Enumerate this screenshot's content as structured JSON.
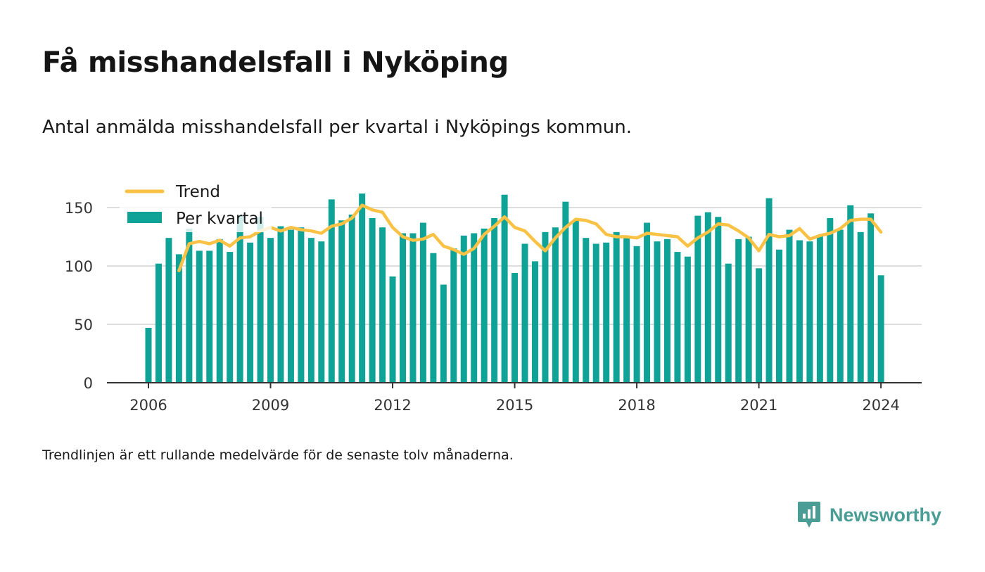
{
  "title": "Få misshandelsfall i Nyköping",
  "subtitle": "Antal anmälda misshandelsfall per kvartal i Nyköpings kommun.",
  "note": "Trendlinjen är ett rullande medelvärde för de senaste tolv månaderna.",
  "brand": {
    "name": "Newsworthy",
    "icon": "newsworthy-logo-icon"
  },
  "colors": {
    "bar": "#0fa397",
    "trend": "#f9c244",
    "grid": "#dddddd",
    "axis": "#333333",
    "brand": "#4a9d94"
  },
  "chart_data": {
    "type": "bar",
    "x_unit": "quarter",
    "start": "2006 Q1",
    "categories": [
      "2006 Q1",
      "2006 Q2",
      "2006 Q3",
      "2006 Q4",
      "2007 Q1",
      "2007 Q2",
      "2007 Q3",
      "2007 Q4",
      "2008 Q1",
      "2008 Q2",
      "2008 Q3",
      "2008 Q4",
      "2009 Q1",
      "2009 Q2",
      "2009 Q3",
      "2009 Q4",
      "2010 Q1",
      "2010 Q2",
      "2010 Q3",
      "2010 Q4",
      "2011 Q1",
      "2011 Q2",
      "2011 Q3",
      "2011 Q4",
      "2012 Q1",
      "2012 Q2",
      "2012 Q3",
      "2012 Q4",
      "2013 Q1",
      "2013 Q2",
      "2013 Q3",
      "2013 Q4",
      "2014 Q1",
      "2014 Q2",
      "2014 Q3",
      "2014 Q4",
      "2015 Q1",
      "2015 Q2",
      "2015 Q3",
      "2015 Q4",
      "2016 Q1",
      "2016 Q2",
      "2016 Q3",
      "2016 Q4",
      "2017 Q1",
      "2017 Q2",
      "2017 Q3",
      "2017 Q4",
      "2018 Q1",
      "2018 Q2",
      "2018 Q3",
      "2018 Q4",
      "2019 Q1",
      "2019 Q2",
      "2019 Q3",
      "2019 Q4",
      "2020 Q1",
      "2020 Q2",
      "2020 Q3",
      "2020 Q4",
      "2021 Q1",
      "2021 Q2",
      "2021 Q3",
      "2021 Q4",
      "2022 Q1",
      "2022 Q2",
      "2022 Q3",
      "2022 Q4",
      "2023 Q1",
      "2023 Q2",
      "2023 Q3",
      "2023 Q4",
      "2024 Q1"
    ],
    "series": [
      {
        "name": "Per kvartal",
        "kind": "bar",
        "values": [
          47,
          102,
          124,
          110,
          132,
          113,
          113,
          123,
          112,
          143,
          120,
          142,
          124,
          134,
          131,
          133,
          124,
          121,
          157,
          139,
          144,
          162,
          141,
          133,
          91,
          128,
          128,
          137,
          111,
          84,
          115,
          126,
          128,
          132,
          141,
          161,
          94,
          119,
          104,
          129,
          133,
          155,
          139,
          124,
          119,
          120,
          129,
          125,
          117,
          137,
          121,
          123,
          112,
          108,
          143,
          146,
          142,
          102,
          123,
          125,
          98,
          158,
          114,
          131,
          122,
          121,
          126,
          141,
          131,
          152,
          129,
          145,
          92
        ]
      },
      {
        "name": "Trend",
        "kind": "line",
        "values": [
          null,
          null,
          null,
          96,
          119,
          121,
          119,
          122,
          117,
          124,
          125,
          130,
          133,
          130,
          133,
          131,
          130,
          128,
          134,
          136,
          141,
          152,
          148,
          146,
          133,
          125,
          122,
          123,
          127,
          117,
          114,
          110,
          115,
          127,
          134,
          142,
          133,
          130,
          121,
          113,
          124,
          133,
          140,
          139,
          136,
          127,
          125,
          125,
          124,
          128,
          127,
          126,
          125,
          117,
          124,
          129,
          136,
          135,
          130,
          124,
          113,
          127,
          125,
          126,
          132,
          123,
          126,
          128,
          132,
          139,
          140,
          140,
          129
        ]
      }
    ],
    "xlabel": "",
    "ylabel": "",
    "ylim": [
      0,
      160
    ],
    "yticks": [
      "0",
      "50",
      "100",
      "150"
    ],
    "xticks": [
      "2006",
      "2009",
      "2012",
      "2015",
      "2018",
      "2021",
      "2024"
    ],
    "grid": true,
    "legend": {
      "position": "top-left",
      "items": [
        "Trend",
        "Per kvartal"
      ]
    }
  }
}
